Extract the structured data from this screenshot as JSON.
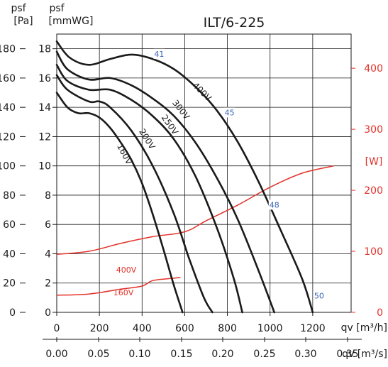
{
  "chart_data": {
    "type": "line",
    "title": "ILT/6-225",
    "axes": {
      "left_outer": {
        "label_line1": "psf",
        "label_line2": "[Pa]",
        "ticks": [
          0,
          20,
          40,
          60,
          80,
          100,
          120,
          140,
          160,
          180
        ]
      },
      "left_inner": {
        "label_line1": "psf",
        "label_line2": "[mmWG]",
        "ticks": [
          0,
          2,
          4,
          6,
          8,
          10,
          12,
          14,
          16,
          18
        ],
        "ylim": [
          0,
          19
        ]
      },
      "right": {
        "label": "[W]",
        "ticks": [
          0,
          100,
          200,
          300,
          400
        ],
        "ylim": [
          0,
          456
        ]
      },
      "x_m3h": {
        "label": "qv [m³/h]",
        "ticks": [
          0,
          200,
          400,
          600,
          800,
          1000,
          1200
        ],
        "xlim": [
          0,
          1380
        ]
      },
      "x_m3s": {
        "label": "qv [m³/s]",
        "ticks": [
          "0.00",
          "0.05",
          "0.10",
          "0.15",
          "0.20",
          "0.25",
          "0.30",
          "0.35"
        ]
      }
    },
    "grid": true,
    "pressure_series": [
      {
        "name": "400V",
        "x": [
          0,
          60,
          150,
          250,
          350,
          450,
          550,
          650,
          750,
          850,
          950,
          1050,
          1150,
          1200
        ],
        "y": [
          18.5,
          17.4,
          16.9,
          17.3,
          17.6,
          17.3,
          16.6,
          15.4,
          13.8,
          11.6,
          8.8,
          5.6,
          2.3,
          0
        ]
      },
      {
        "name": "300V",
        "x": [
          0,
          50,
          150,
          250,
          350,
          450,
          550,
          650,
          750,
          850,
          950,
          1020
        ],
        "y": [
          17.8,
          16.6,
          15.9,
          16.0,
          15.5,
          14.6,
          13.4,
          11.6,
          9.2,
          6.3,
          2.7,
          0
        ]
      },
      {
        "name": "250V",
        "x": [
          0,
          50,
          150,
          250,
          350,
          450,
          550,
          650,
          750,
          830,
          870
        ],
        "y": [
          16.9,
          15.8,
          15.2,
          15.2,
          14.5,
          13.4,
          11.8,
          9.3,
          5.8,
          2.3,
          0
        ]
      },
      {
        "name": "200V",
        "x": [
          0,
          50,
          150,
          200,
          250,
          350,
          450,
          550,
          620,
          690,
          730
        ],
        "y": [
          16.2,
          15.2,
          14.4,
          14.4,
          14.0,
          12.4,
          10.0,
          6.7,
          3.7,
          1.0,
          0
        ]
      },
      {
        "name": "160V",
        "x": [
          0,
          50,
          100,
          150,
          200,
          250,
          300,
          350,
          400,
          450,
          500,
          550,
          590
        ],
        "y": [
          15.0,
          14.0,
          13.6,
          13.6,
          13.3,
          12.6,
          11.6,
          10.4,
          8.8,
          6.7,
          4.3,
          1.8,
          0
        ]
      }
    ],
    "power_series": [
      {
        "name": "400V",
        "x": [
          0,
          150,
          300,
          450,
          600,
          700,
          850,
          1000,
          1150,
          1300
        ],
        "y": [
          95,
          100,
          113,
          124,
          132,
          150,
          176,
          205,
          228,
          240
        ]
      },
      {
        "name": "160V",
        "x": [
          0,
          150,
          300,
          400,
          450,
          550,
          580
        ],
        "y": [
          28,
          30,
          38,
          43,
          52,
          56,
          57
        ]
      }
    ],
    "efficiency_markers": [
      {
        "label": "41",
        "x": 480,
        "y": 17.6
      },
      {
        "label": "45",
        "x": 810,
        "y": 13.6
      },
      {
        "label": "48",
        "x": 1020,
        "y": 7.3
      },
      {
        "label": "50",
        "x": 1230,
        "y": 1.1
      }
    ]
  }
}
